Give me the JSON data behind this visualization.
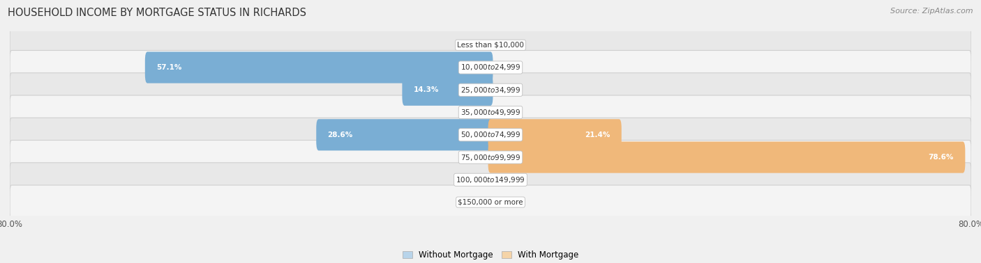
{
  "title": "HOUSEHOLD INCOME BY MORTGAGE STATUS IN RICHARDS",
  "source": "Source: ZipAtlas.com",
  "categories": [
    "Less than $10,000",
    "$10,000 to $24,999",
    "$25,000 to $34,999",
    "$35,000 to $49,999",
    "$50,000 to $74,999",
    "$75,000 to $99,999",
    "$100,000 to $149,999",
    "$150,000 or more"
  ],
  "without_mortgage": [
    0.0,
    57.1,
    14.3,
    0.0,
    28.6,
    0.0,
    0.0,
    0.0
  ],
  "with_mortgage": [
    0.0,
    0.0,
    0.0,
    0.0,
    21.4,
    78.6,
    0.0,
    0.0
  ],
  "color_without": "#7aaed4",
  "color_with": "#f0b87a",
  "color_without_light": "#b8d4ea",
  "color_with_light": "#f5d4a8",
  "xlim_left": -80,
  "xlim_right": 80,
  "legend_label_without": "Without Mortgage",
  "legend_label_with": "With Mortgage",
  "background_color": "#f0f0f0",
  "row_colors": [
    "#e8e8e8",
    "#f4f4f4"
  ]
}
